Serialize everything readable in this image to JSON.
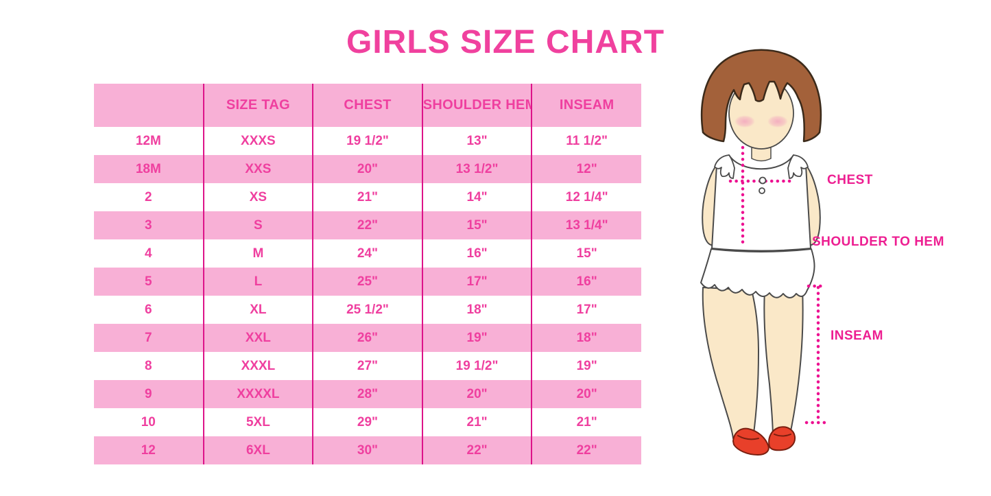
{
  "title": "GIRLS SIZE CHART",
  "colors": {
    "title_pink": "#F0419E",
    "row_pink": "#F8B0D6",
    "divider_pink": "#DD1389",
    "text_pink": "#EF3F9F",
    "label_pink": "#ED1E91",
    "dotted_line_pink": "#ED1191",
    "hair_brown": "#A3613A",
    "hair_outline": "#3B2A1A",
    "skin": "#FAE8C8",
    "outline_gray": "#4A4A4A",
    "blush_pink": "#F3A9BF",
    "shoe_red": "#E8402A",
    "shoe_outline": "#7A1F10"
  },
  "chart_data": {
    "type": "table",
    "title": "GIRLS SIZE CHART",
    "columns": [
      "",
      "SIZE TAG",
      "CHEST",
      "SHOULDER HEM",
      "INSEAM"
    ],
    "rows": [
      [
        "12M",
        "XXXS",
        "19 1/2\"",
        "13\"",
        "11 1/2\""
      ],
      [
        "18M",
        "XXS",
        "20\"",
        "13 1/2\"",
        "12\""
      ],
      [
        "2",
        "XS",
        "21\"",
        "14\"",
        "12 1/4\""
      ],
      [
        "3",
        "S",
        "22\"",
        "15\"",
        "13 1/4\""
      ],
      [
        "4",
        "M",
        "24\"",
        "16\"",
        "15\""
      ],
      [
        "5",
        "L",
        "25\"",
        "17\"",
        "16\""
      ],
      [
        "6",
        "XL",
        "25 1/2\"",
        "18\"",
        "17\""
      ],
      [
        "7",
        "XXL",
        "26\"",
        "19\"",
        "18\""
      ],
      [
        "8",
        "XXXL",
        "27\"",
        "19 1/2\"",
        "19\""
      ],
      [
        "9",
        "XXXXL",
        "28\"",
        "20\"",
        "20\""
      ],
      [
        "10",
        "5XL",
        "29\"",
        "21\"",
        "21\""
      ],
      [
        "12",
        "6XL",
        "30\"",
        "22\"",
        "22\""
      ]
    ],
    "row_stripe_pattern": "white rows alternate with pink rows; header row pink",
    "legend_position": "none",
    "grid": "vertical column dividers only"
  },
  "figure": {
    "description": "illustration of girl showing measurement lines",
    "chest_label": "CHEST",
    "shoulder_to_hem_label": "SHOULDER TO HEM",
    "inseam_label": "INSEAM"
  }
}
